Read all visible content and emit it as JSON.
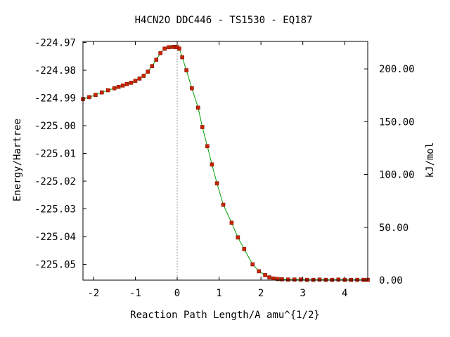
{
  "chart_data": {
    "type": "line",
    "title": "H4CN2O   DDC446 - TS1530 - EQ187",
    "xlabel": "Reaction Path Length/A amu^{1/2}",
    "ylabel": "Energy/Hartree",
    "y2label": "kJ/mol",
    "xlim": [
      -2.25,
      4.55
    ],
    "ylim": [
      -225.0557,
      -224.9696
    ],
    "y2lim": [
      0.0,
      226.0
    ],
    "x_ticks": [
      -2,
      -1,
      0,
      1,
      2,
      3,
      4
    ],
    "x_tick_labels": [
      "-2",
      "-1",
      "0",
      "1",
      "2",
      "3",
      "4"
    ],
    "y_ticks": [
      -224.97,
      -224.98,
      -224.99,
      -225.0,
      -225.01,
      -225.02,
      -225.03,
      -225.04,
      -225.05
    ],
    "y_tick_labels": [
      "-224.97",
      "-224.98",
      "-224.99",
      "-225.00",
      "-225.01",
      "-225.02",
      "-225.03",
      "-225.04",
      "-225.05"
    ],
    "y2_ticks": [
      200,
      150,
      100,
      50,
      0
    ],
    "y2_tick_labels": [
      "200.00",
      "150.00",
      "100.00",
      "50.00",
      "0.00"
    ],
    "ts_x": 0.0,
    "colors": {
      "curve": "#00a000",
      "points": "#cc2200",
      "ts_line": "#a0a0a0"
    },
    "series": [
      {
        "x": [
          -2.25,
          -2.1,
          -1.95,
          -1.8,
          -1.65,
          -1.5,
          -1.4,
          -1.3,
          -1.2,
          -1.1,
          -1.0,
          -0.9,
          -0.8,
          -0.7,
          -0.6,
          -0.5,
          -0.4,
          -0.3,
          -0.2,
          -0.1,
          -0.05,
          0.0,
          0.05,
          0.12,
          0.22,
          0.35,
          0.5,
          0.6,
          0.72,
          0.83,
          0.95,
          1.1,
          1.3,
          1.45,
          1.6,
          1.8,
          1.95,
          2.1,
          2.2,
          2.3,
          2.4,
          2.5,
          2.65,
          2.8,
          2.95,
          3.1,
          3.25,
          3.4,
          3.55,
          3.7,
          3.85,
          4.0,
          4.15,
          4.3,
          4.45,
          4.55
        ],
        "y": [
          -224.9904,
          -224.9897,
          -224.9889,
          -224.988,
          -224.9872,
          -224.9865,
          -224.986,
          -224.9855,
          -224.985,
          -224.9845,
          -224.9838,
          -224.983,
          -224.982,
          -224.9805,
          -224.9785,
          -224.9762,
          -224.9738,
          -224.9722,
          -224.9717,
          -224.9716,
          -224.9716,
          -224.9717,
          -224.9722,
          -224.9753,
          -224.98,
          -224.9865,
          -224.9935,
          -225.0005,
          -225.0074,
          -225.014,
          -225.0208,
          -225.0285,
          -225.035,
          -225.0403,
          -225.0445,
          -225.05,
          -225.0525,
          -225.0539,
          -225.0547,
          -225.0551,
          -225.0553,
          -225.0554,
          -225.0555,
          -225.0555,
          -225.0555,
          -225.0556,
          -225.0556,
          -225.0555,
          -225.0556,
          -225.0556,
          -225.0555,
          -225.0556,
          -225.0556,
          -225.0556,
          -225.0556,
          -225.0556
        ]
      }
    ]
  }
}
